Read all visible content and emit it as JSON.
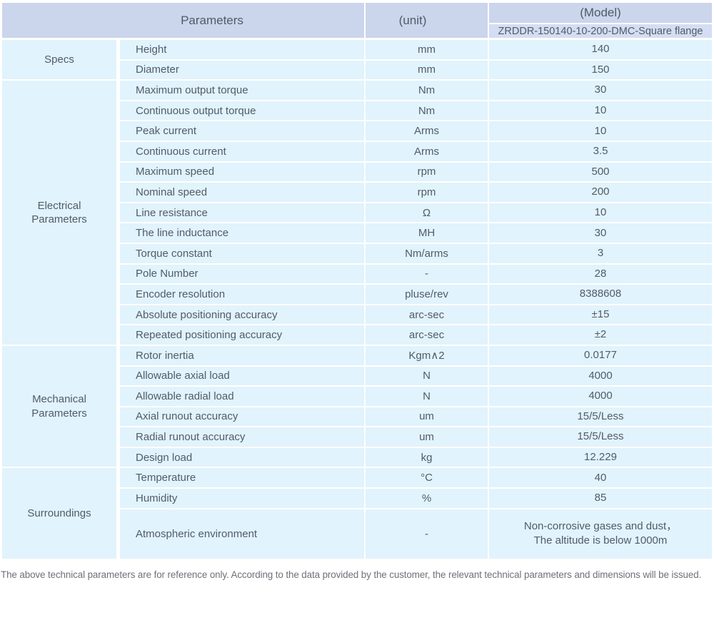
{
  "header": {
    "parameters": "Parameters",
    "unit": "(unit)",
    "model": "(Model)",
    "model_value": "ZRDDR-150140-10-200-DMC-Square flange"
  },
  "sections": [
    {
      "category": "Specs",
      "rows": [
        {
          "param": "Height",
          "unit": "mm",
          "value": "140"
        },
        {
          "param": "Diameter",
          "unit": "mm",
          "value": "150"
        }
      ]
    },
    {
      "category": "Electrical Parameters",
      "rows": [
        {
          "param": "Maximum output torque",
          "unit": "Nm",
          "value": "30"
        },
        {
          "param": "Continuous output torque",
          "unit": "Nm",
          "value": "10"
        },
        {
          "param": "Peak current",
          "unit": "Arms",
          "value": "10"
        },
        {
          "param": "Continuous current",
          "unit": "Arms",
          "value": "3.5"
        },
        {
          "param": "Maximum speed",
          "unit": "rpm",
          "value": "500"
        },
        {
          "param": "Nominal speed",
          "unit": "rpm",
          "value": "200"
        },
        {
          "param": "Line resistance",
          "unit": "Ω",
          "value": "10"
        },
        {
          "param": "The line inductance",
          "unit": "MH",
          "value": "30"
        },
        {
          "param": "Torque constant",
          "unit": "Nm/arms",
          "value": "3"
        },
        {
          "param": "Pole Number",
          "unit": "-",
          "value": "28"
        },
        {
          "param": "Encoder resolution",
          "unit": "pluse/rev",
          "value": "8388608"
        },
        {
          "param": "Absolute positioning accuracy",
          "unit": "arc-sec",
          "value": "±15"
        },
        {
          "param": "Repeated positioning accuracy",
          "unit": "arc-sec",
          "value": "±2"
        }
      ]
    },
    {
      "category": "Mechanical Parameters",
      "rows": [
        {
          "param": "Rotor inertia",
          "unit": "Kgm∧2",
          "value": "0.0177"
        },
        {
          "param": "Allowable axial load",
          "unit": "N",
          "value": "4000"
        },
        {
          "param": "Allowable radial load",
          "unit": "N",
          "value": "4000"
        },
        {
          "param": "Axial runout accuracy",
          "unit": "um",
          "value": "15/5/Less"
        },
        {
          "param": "Radial runout accuracy",
          "unit": "um",
          "value": "15/5/Less"
        },
        {
          "param": "Design load",
          "unit": "kg",
          "value": "12.229"
        }
      ]
    },
    {
      "category": "Surroundings",
      "rows": [
        {
          "param": "Temperature",
          "unit": "°C",
          "value": "40"
        },
        {
          "param": "Humidity",
          "unit": "%",
          "value": "85"
        },
        {
          "param": "Atmospheric environment",
          "unit": "-",
          "value": "Non-corrosive gases and dust，\nThe altitude is below 1000m",
          "tall": true
        }
      ]
    }
  ],
  "footer": {
    "note": "The above technical parameters are for reference only. According to the data provided by the customer, the relevant technical parameters and dimensions will be issued."
  },
  "colors": {
    "header_bg": "#cbd5eb",
    "subheader_bg": "#d4ddf2",
    "row_bg": "#e1f3fc",
    "text": "#515c68",
    "footer_text": "#6d7178"
  }
}
